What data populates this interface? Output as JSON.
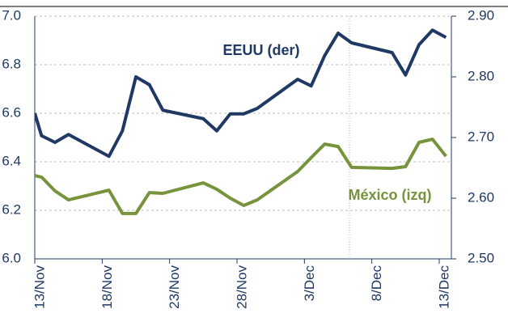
{
  "chart_data": {
    "type": "line",
    "annotations": [
      "EEUU (der)",
      "México (izq)"
    ],
    "xlim": [
      0,
      30.9
    ],
    "xticks": [
      {
        "value": 0,
        "label": "13/Nov"
      },
      {
        "value": 5,
        "label": "18/Nov"
      },
      {
        "value": 10,
        "label": "23/Nov"
      },
      {
        "value": 15,
        "label": "28/Nov"
      },
      {
        "value": 20,
        "label": "3/Dec"
      },
      {
        "value": 25,
        "label": "8/Dec"
      },
      {
        "value": 30,
        "label": "13/Dec"
      }
    ],
    "ylim": [
      6.0,
      7.0
    ],
    "yticks": [
      {
        "value": 6.0,
        "label": "6.0"
      },
      6.2,
      6.4,
      6.6,
      6.8,
      {
        "value": 7.0,
        "label": "7.0"
      }
    ],
    "y2lim": [
      2.5,
      2.9
    ],
    "y2ticks": [
      {
        "value": 2.5,
        "label": "2.50"
      },
      {
        "value": 2.6,
        "label": "2.60"
      },
      {
        "value": 2.7,
        "label": "2.70"
      },
      {
        "value": 2.8,
        "label": "2.80"
      },
      {
        "value": 2.9,
        "label": "2.90"
      }
    ],
    "grid": true,
    "x": [
      0,
      0.5,
      1.5,
      2.5,
      5.5,
      6.5,
      7.5,
      8.5,
      9.5,
      12.5,
      13.5,
      14.5,
      15.5,
      16.5,
      19.5,
      20.5,
      21.5,
      22.5,
      23.5,
      26.5,
      27.5,
      28.5,
      29.5,
      30.5
    ],
    "series": [
      {
        "name": "EEUU (der)",
        "color": "#1f3864",
        "axis": "y2",
        "values": [
          2.74,
          2.703,
          2.692,
          2.705,
          2.669,
          2.711,
          2.8,
          2.787,
          2.745,
          2.731,
          2.711,
          2.739,
          2.739,
          2.748,
          2.796,
          2.785,
          2.835,
          2.872,
          2.856,
          2.84,
          2.803,
          2.853,
          2.877,
          2.865
        ]
      },
      {
        "name": "México (izq)",
        "color": "#77933c",
        "values": [
          6.343,
          6.337,
          6.28,
          6.243,
          6.283,
          6.187,
          6.187,
          6.273,
          6.27,
          6.313,
          6.287,
          6.25,
          6.22,
          6.243,
          6.36,
          6.417,
          6.473,
          6.463,
          6.377,
          6.373,
          6.38,
          6.48,
          6.493,
          6.423
        ]
      }
    ]
  }
}
